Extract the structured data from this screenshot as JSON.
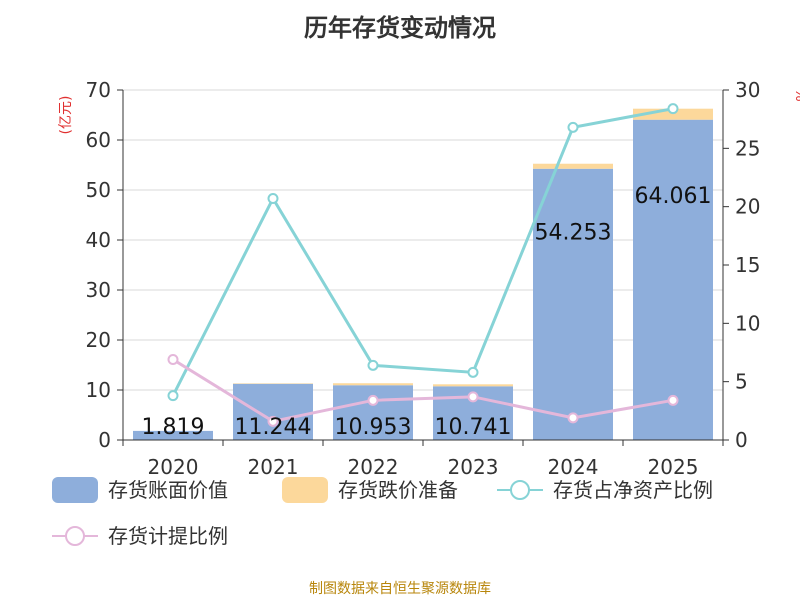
{
  "title": "历年存货变动情况",
  "footer": "制图数据来自恒生聚源数据库",
  "chart_data": {
    "type": "bar",
    "title": "历年存货变动情况",
    "categories": [
      "2020",
      "2021",
      "2022",
      "2023",
      "2024",
      "2025"
    ],
    "y_left": {
      "label": "(亿元)",
      "ylim": [
        0,
        70
      ],
      "ticks": [
        0,
        10,
        20,
        30,
        40,
        50,
        60,
        70
      ]
    },
    "y_right": {
      "label": "%",
      "ylim": [
        0,
        30
      ],
      "ticks": [
        0,
        5,
        10,
        15,
        20,
        25,
        30
      ]
    },
    "grid": true,
    "legend_position": "bottom",
    "series": [
      {
        "name": "存货账面价值",
        "type": "bar",
        "stack": "total",
        "axis": "left",
        "values": [
          1.819,
          11.244,
          10.953,
          10.741,
          54.253,
          64.061
        ],
        "labels": [
          "1.819",
          "11.244",
          "10.953",
          "10.741",
          "54.253",
          "64.061"
        ],
        "color": "#8eaedb"
      },
      {
        "name": "存货跌价准备",
        "type": "bar",
        "stack": "total",
        "axis": "left",
        "values": [
          0.0,
          0.1,
          0.4,
          0.4,
          1.0,
          2.2
        ],
        "color": "#fcd89b"
      },
      {
        "name": "存货占净资产比例",
        "type": "line",
        "axis": "right",
        "values": [
          3.8,
          20.7,
          6.4,
          5.8,
          26.8,
          28.4
        ],
        "color": "#86d3d6"
      },
      {
        "name": "存货计提比例",
        "type": "line",
        "axis": "right",
        "values": [
          6.9,
          1.6,
          3.4,
          3.7,
          1.9,
          3.4
        ],
        "color": "#e4b7da"
      }
    ]
  }
}
